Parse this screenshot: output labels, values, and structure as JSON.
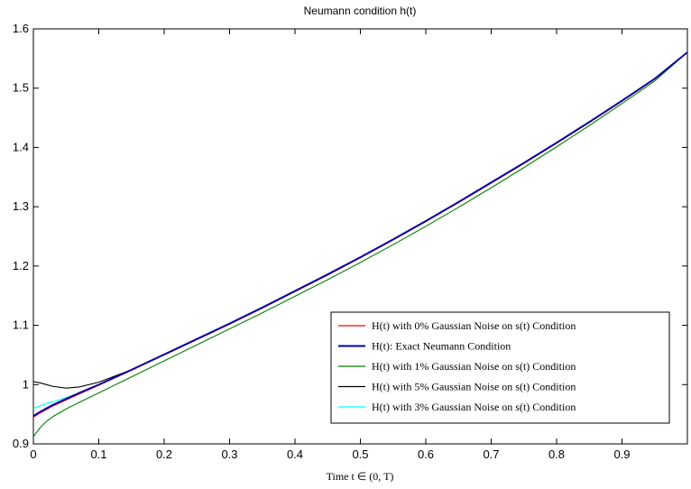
{
  "chart_data": {
    "type": "line",
    "title": "Neumann condition h(t)",
    "xlabel": "Time t ∈ (0, T)",
    "ylabel": "",
    "xlim": [
      0,
      1
    ],
    "ylim": [
      0.9,
      1.6
    ],
    "xticks": [
      0,
      0.1,
      0.2,
      0.3,
      0.4,
      0.5,
      0.6,
      0.7,
      0.8,
      0.9
    ],
    "xtick_labels": [
      "0",
      "0.1",
      "0.2",
      "0.3",
      "0.4",
      "0.5",
      "0.6",
      "0.7",
      "0.8",
      "0.9"
    ],
    "yticks": [
      0.9,
      1.0,
      1.1,
      1.2,
      1.3,
      1.4,
      1.5,
      1.6
    ],
    "ytick_labels": [
      "0.9",
      "1",
      "1.1",
      "1.2",
      "1.3",
      "1.4",
      "1.5",
      "1.6"
    ],
    "grid": false,
    "legend_position": "bottom-right",
    "x": [
      0,
      0.01,
      0.02,
      0.03,
      0.05,
      0.07,
      0.1,
      0.15,
      0.2,
      0.25,
      0.3,
      0.35,
      0.4,
      0.45,
      0.5,
      0.55,
      0.6,
      0.65,
      0.7,
      0.75,
      0.8,
      0.85,
      0.9,
      0.95,
      1.0
    ],
    "series": [
      {
        "name": "H(t) with 0% Gaussian Noise on s(t) Condition",
        "color": "#ff0000",
        "values": [
          0.945,
          0.952,
          0.958,
          0.964,
          0.974,
          0.984,
          0.999,
          1.024,
          1.05,
          1.076,
          1.102,
          1.129,
          1.157,
          1.185,
          1.214,
          1.244,
          1.275,
          1.307,
          1.34,
          1.373,
          1.407,
          1.442,
          1.478,
          1.515,
          1.5605
        ]
      },
      {
        "name": "H(t): Exact Neumann Condition",
        "color": "#0000aa",
        "values": [
          0.947,
          0.954,
          0.96,
          0.966,
          0.976,
          0.986,
          1.0,
          1.025,
          1.051,
          1.077,
          1.103,
          1.13,
          1.158,
          1.186,
          1.215,
          1.245,
          1.276,
          1.308,
          1.341,
          1.374,
          1.408,
          1.443,
          1.479,
          1.516,
          1.5605
        ]
      },
      {
        "name": "H(t) with 1% Gaussian Noise on s(t) Condition",
        "color": "#008000",
        "values": [
          0.912,
          0.927,
          0.938,
          0.946,
          0.959,
          0.97,
          0.986,
          1.013,
          1.04,
          1.067,
          1.094,
          1.121,
          1.149,
          1.177,
          1.206,
          1.236,
          1.267,
          1.299,
          1.332,
          1.366,
          1.401,
          1.437,
          1.474,
          1.512,
          1.5605
        ]
      },
      {
        "name": "H(t) with 5% Gaussian Noise on s(t) Condition",
        "color": "#000000",
        "values": [
          1.005,
          1.003,
          1.0,
          0.997,
          0.994,
          0.996,
          1.004,
          1.025,
          1.05,
          1.076,
          1.102,
          1.129,
          1.157,
          1.185,
          1.214,
          1.244,
          1.275,
          1.307,
          1.34,
          1.373,
          1.407,
          1.442,
          1.478,
          1.515,
          1.5605
        ]
      },
      {
        "name": "H(t) with 3% Gaussian Noise on s(t) Condition",
        "color": "#00ffff",
        "values": [
          0.96,
          0.964,
          0.968,
          0.971,
          0.978,
          0.986,
          0.999,
          1.024,
          1.05,
          1.076,
          1.102,
          1.129,
          1.157,
          1.185,
          1.214,
          1.244,
          1.275,
          1.307,
          1.34,
          1.373,
          1.407,
          1.442,
          1.478,
          1.515,
          1.5605
        ]
      }
    ]
  }
}
